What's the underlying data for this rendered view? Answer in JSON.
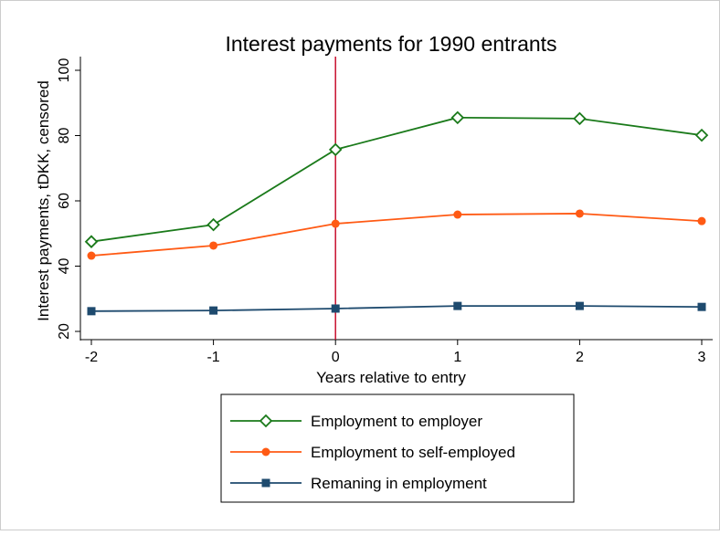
{
  "chart_data": {
    "type": "line",
    "title": "Interest payments for 1990 entrants",
    "x_label": "Years relative to entry",
    "y_label": "Interest payments, tDKK, censored",
    "x": [
      -2,
      -1,
      0,
      1,
      2,
      3
    ],
    "series": [
      {
        "name": "Employment to employer",
        "color": "#1a7a1a",
        "marker": "diamond-open",
        "values": [
          47.5,
          52.7,
          75.7,
          85.5,
          85.2,
          80.1
        ]
      },
      {
        "name": "Employment to self-employed",
        "color": "#ff5a14",
        "marker": "circle",
        "values": [
          43.2,
          46.3,
          53.0,
          55.8,
          56.1,
          53.8
        ]
      },
      {
        "name": "Remaning in employment",
        "color": "#1e4a6e",
        "marker": "square",
        "values": [
          26.2,
          26.4,
          27.0,
          27.8,
          27.8,
          27.5
        ]
      }
    ],
    "xlim": [
      -2,
      3
    ],
    "xticks": [
      -2,
      -1,
      0,
      1,
      2,
      3
    ],
    "ylim": [
      20,
      100
    ],
    "yticks": [
      20,
      40,
      60,
      80,
      100
    ],
    "xline": 0,
    "xline_color": "#c8102e",
    "grid": false
  }
}
